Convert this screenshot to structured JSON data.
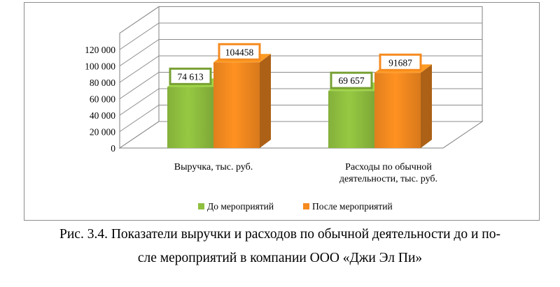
{
  "chart_data": {
    "type": "bar",
    "categories": [
      "Выручка, тыс. руб.",
      "Расходы по обычной деятельности, тыс. руб."
    ],
    "category_lines": [
      [
        "Выручка, тыс. руб."
      ],
      [
        "Расходы по обычной",
        "деятельности, тыс. руб."
      ]
    ],
    "series": [
      {
        "name": "До мероприятий",
        "values": [
          74613,
          69657
        ],
        "labels": [
          "74 613",
          "69 657"
        ],
        "color": "#8fbf3f",
        "label_border": "#77a033"
      },
      {
        "name": "После мероприятий",
        "values": [
          104458,
          91687
        ],
        "labels": [
          "104458",
          "91687"
        ],
        "color": "#f58a1f",
        "label_border": "#f58a1f"
      }
    ],
    "yticks": [
      "0",
      "20 000",
      "40 000",
      "60 000",
      "80 000",
      "100 000",
      "120 000"
    ],
    "ylim": [
      0,
      140000
    ],
    "grid": true,
    "legend_position": "bottom",
    "title": "",
    "xlabel": "",
    "ylabel": ""
  },
  "caption": {
    "line1": "Рис. 3.4. Показатели выручки и расходов по обычной деятельности до и по-",
    "line2": "сле мероприятий в компании ООО «Джи Эл Пи»"
  }
}
